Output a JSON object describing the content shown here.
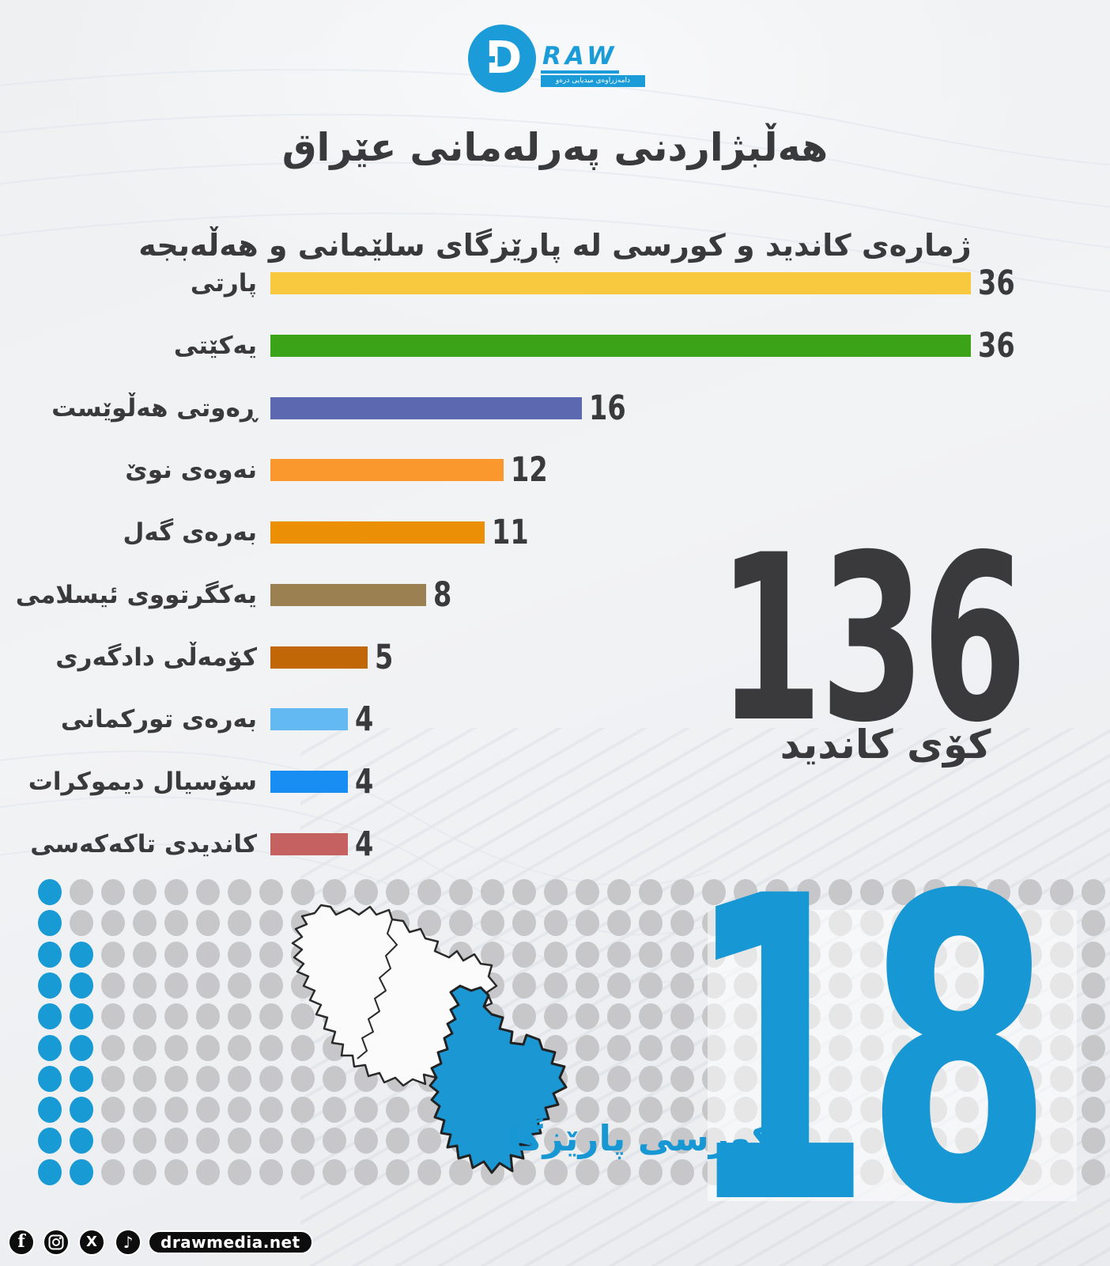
{
  "logo": {
    "letter": "D",
    "brand": "RAW",
    "tagline": "دامەزراوەی میدیایی درەو"
  },
  "header": {
    "title": "هەڵبژاردنی پەرلەمانی عێراق",
    "subtitle": "ژمارەی کاندید و کورسی لە پارێزگای سلێمانی و هەڵەبجە"
  },
  "chart_data": {
    "type": "bar",
    "orientation": "horizontal",
    "xlim": [
      0,
      36
    ],
    "categories": [
      "پارتی",
      "یەکێتی",
      "ڕەوتی هەڵوێست",
      "نەوەی نوێ",
      "بەرەی گەل",
      "یەکگرتووی ئیسلامی",
      "کۆمەڵی دادگەری",
      "بەرەی تورکمانی",
      "سۆسیال دیموکرات",
      "کاندیدی تاکەکەسی"
    ],
    "values": [
      36,
      36,
      16,
      12,
      11,
      8,
      5,
      4,
      4,
      4
    ],
    "colors": [
      "#f8c93e",
      "#3aa317",
      "#5c69b0",
      "#fa982e",
      "#ea8f06",
      "#9b8052",
      "#c16708",
      "#63b9f2",
      "#188ef2",
      "#c66161"
    ],
    "label_color": "#3a3a3c",
    "value_color": "#3a3a3c",
    "grid": false,
    "legend": false
  },
  "total_candidates": {
    "value": "136",
    "label": "کۆی کاندید"
  },
  "seats": {
    "value": "18",
    "label": "کورسی پارێزگا",
    "color": "#1797d3"
  },
  "dot_grid": {
    "rows": 10,
    "cols": 34,
    "blue_count": 18,
    "blue_color": "#189ad5",
    "gray_color": "#c7c7c9"
  },
  "map": {
    "highlight_color": "#1b97d4",
    "outline_color": "#2b2b2b",
    "region_fill": "#fbfbfc"
  },
  "footer": {
    "site": "drawmedia.net"
  },
  "accent": "#1b9cd8"
}
